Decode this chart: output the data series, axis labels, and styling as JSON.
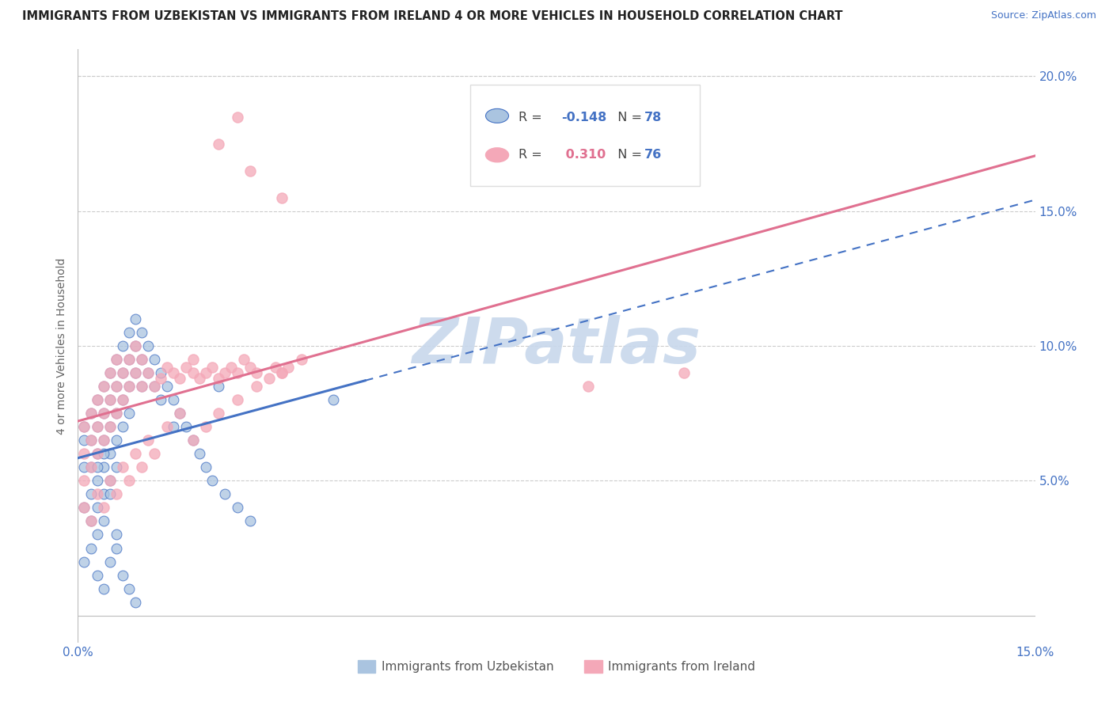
{
  "title": "IMMIGRANTS FROM UZBEKISTAN VS IMMIGRANTS FROM IRELAND 4 OR MORE VEHICLES IN HOUSEHOLD CORRELATION CHART",
  "source": "Source: ZipAtlas.com",
  "ylabel": "4 or more Vehicles in Household",
  "xlim": [
    0.0,
    0.15
  ],
  "ylim": [
    -0.01,
    0.21
  ],
  "xticks": [
    0.0,
    0.05,
    0.1,
    0.15
  ],
  "xtick_labels": [
    "0.0%",
    "",
    "",
    "15.0%"
  ],
  "yticks": [
    0.05,
    0.1,
    0.15,
    0.2
  ],
  "ytick_labels": [
    "5.0%",
    "10.0%",
    "15.0%",
    "20.0%"
  ],
  "legend_labels": [
    "Immigrants from Uzbekistan",
    "Immigrants from Ireland"
  ],
  "R_uzbekistan": -0.148,
  "N_uzbekistan": 78,
  "R_ireland": 0.31,
  "N_ireland": 76,
  "color_uzbekistan": "#aac4e0",
  "color_ireland": "#f4a8b8",
  "line_color_uzbekistan": "#4472c4",
  "line_color_ireland": "#e07090",
  "watermark": "ZIPatlas",
  "watermark_color": "#c8d8ec",
  "uz_x": [
    0.001,
    0.001,
    0.001,
    0.001,
    0.002,
    0.002,
    0.002,
    0.002,
    0.002,
    0.003,
    0.003,
    0.003,
    0.003,
    0.003,
    0.003,
    0.004,
    0.004,
    0.004,
    0.004,
    0.004,
    0.004,
    0.005,
    0.005,
    0.005,
    0.005,
    0.005,
    0.006,
    0.006,
    0.006,
    0.006,
    0.006,
    0.007,
    0.007,
    0.007,
    0.007,
    0.008,
    0.008,
    0.008,
    0.008,
    0.009,
    0.009,
    0.009,
    0.01,
    0.01,
    0.01,
    0.011,
    0.011,
    0.012,
    0.012,
    0.013,
    0.013,
    0.014,
    0.015,
    0.015,
    0.016,
    0.017,
    0.018,
    0.019,
    0.02,
    0.021,
    0.022,
    0.023,
    0.025,
    0.027,
    0.001,
    0.002,
    0.003,
    0.003,
    0.004,
    0.004,
    0.005,
    0.005,
    0.006,
    0.006,
    0.007,
    0.008,
    0.009,
    0.04
  ],
  "uz_y": [
    0.065,
    0.07,
    0.055,
    0.04,
    0.075,
    0.065,
    0.055,
    0.045,
    0.035,
    0.08,
    0.07,
    0.06,
    0.05,
    0.04,
    0.03,
    0.085,
    0.075,
    0.065,
    0.055,
    0.045,
    0.035,
    0.09,
    0.08,
    0.07,
    0.06,
    0.05,
    0.095,
    0.085,
    0.075,
    0.065,
    0.055,
    0.1,
    0.09,
    0.08,
    0.07,
    0.105,
    0.095,
    0.085,
    0.075,
    0.11,
    0.1,
    0.09,
    0.105,
    0.095,
    0.085,
    0.1,
    0.09,
    0.095,
    0.085,
    0.09,
    0.08,
    0.085,
    0.08,
    0.07,
    0.075,
    0.07,
    0.065,
    0.06,
    0.055,
    0.05,
    0.085,
    0.045,
    0.04,
    0.035,
    0.02,
    0.025,
    0.015,
    0.055,
    0.01,
    0.06,
    0.02,
    0.045,
    0.03,
    0.025,
    0.015,
    0.01,
    0.005,
    0.08
  ],
  "ir_x": [
    0.001,
    0.001,
    0.001,
    0.002,
    0.002,
    0.002,
    0.003,
    0.003,
    0.003,
    0.004,
    0.004,
    0.004,
    0.005,
    0.005,
    0.005,
    0.006,
    0.006,
    0.006,
    0.007,
    0.007,
    0.008,
    0.008,
    0.009,
    0.009,
    0.01,
    0.01,
    0.011,
    0.012,
    0.013,
    0.014,
    0.015,
    0.016,
    0.017,
    0.018,
    0.018,
    0.019,
    0.02,
    0.021,
    0.022,
    0.023,
    0.024,
    0.025,
    0.026,
    0.027,
    0.028,
    0.03,
    0.031,
    0.032,
    0.033,
    0.035,
    0.001,
    0.002,
    0.003,
    0.004,
    0.005,
    0.006,
    0.007,
    0.008,
    0.009,
    0.01,
    0.011,
    0.012,
    0.014,
    0.016,
    0.018,
    0.02,
    0.022,
    0.025,
    0.028,
    0.032,
    0.022,
    0.025,
    0.027,
    0.032,
    0.08,
    0.095
  ],
  "ir_y": [
    0.06,
    0.05,
    0.07,
    0.065,
    0.055,
    0.075,
    0.07,
    0.06,
    0.08,
    0.075,
    0.065,
    0.085,
    0.08,
    0.07,
    0.09,
    0.085,
    0.075,
    0.095,
    0.09,
    0.08,
    0.095,
    0.085,
    0.1,
    0.09,
    0.095,
    0.085,
    0.09,
    0.085,
    0.088,
    0.092,
    0.09,
    0.088,
    0.092,
    0.09,
    0.095,
    0.088,
    0.09,
    0.092,
    0.088,
    0.09,
    0.092,
    0.09,
    0.095,
    0.092,
    0.09,
    0.088,
    0.092,
    0.09,
    0.092,
    0.095,
    0.04,
    0.035,
    0.045,
    0.04,
    0.05,
    0.045,
    0.055,
    0.05,
    0.06,
    0.055,
    0.065,
    0.06,
    0.07,
    0.075,
    0.065,
    0.07,
    0.075,
    0.08,
    0.085,
    0.09,
    0.175,
    0.185,
    0.165,
    0.155,
    0.085,
    0.09
  ]
}
